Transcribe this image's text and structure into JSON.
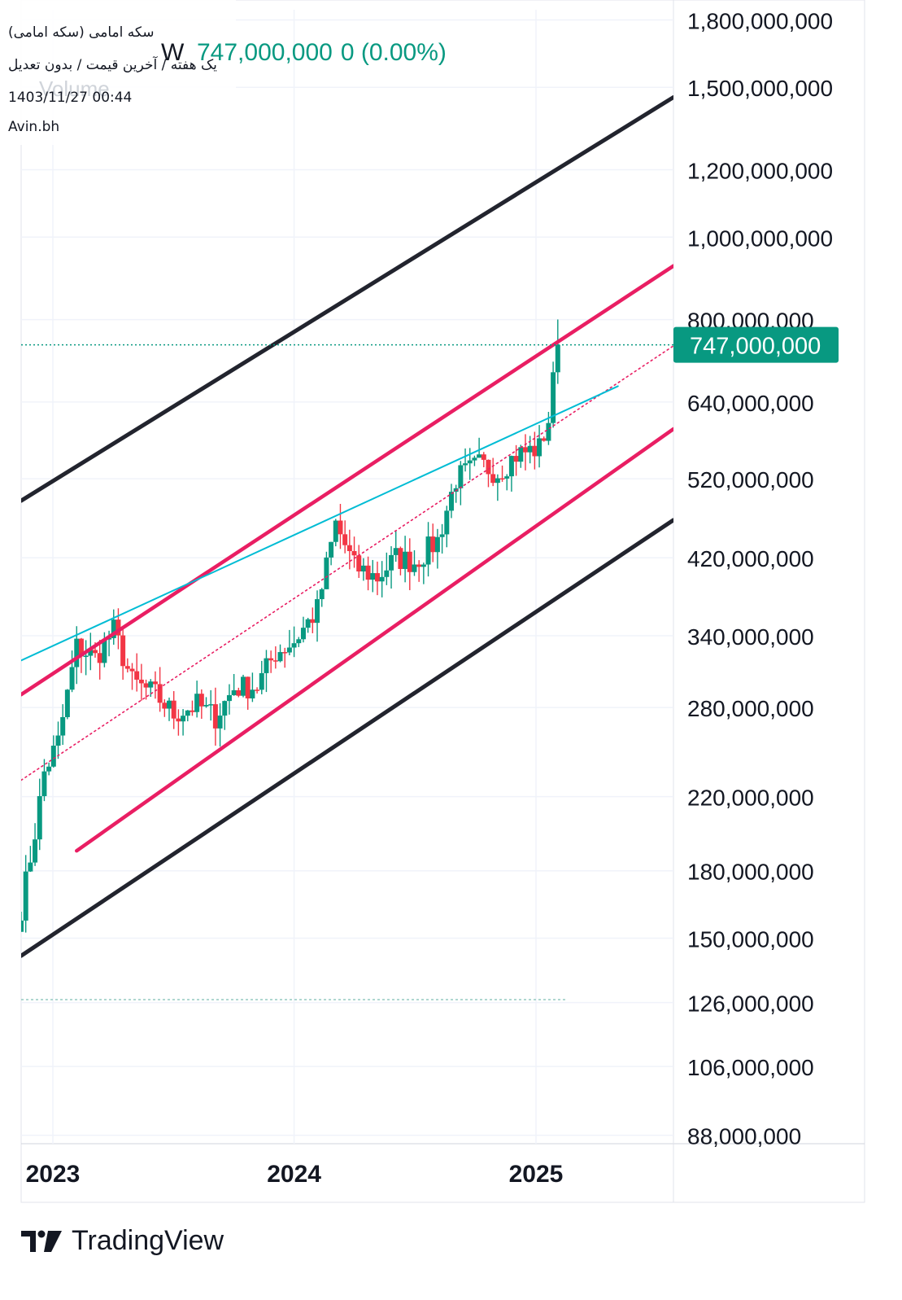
{
  "header": {
    "title": "سکه امامی (سکه امامی)",
    "settings": "یک هفته / آخرین قیمت / بدون تعدیل",
    "datetime": "1403/11/27 00:44",
    "source": "Avin.bh",
    "ghost_volume": "Volume",
    "ghost_letter": "W",
    "last_price": "747,000,000",
    "change": "0 (0.00%)"
  },
  "footer": {
    "brand": "TradingView"
  },
  "colors": {
    "up": "#089981",
    "down": "#f23645",
    "outer_channel": "#22242e",
    "inner_channel": "#e91e63",
    "trendline": "#00bcd4",
    "grid": "#f0f3fa",
    "badge": "#089981"
  },
  "chart_data": {
    "type": "candlestick",
    "timeframe": "weekly",
    "y_scale": "log",
    "ylim": [
      86000000,
      1850000000
    ],
    "xlim": [
      "2022-11-14",
      "2025-07-28"
    ],
    "y_ticks": [
      {
        "value": 1800000000,
        "label": "1,800,000,000"
      },
      {
        "value": 1500000000,
        "label": "1,500,000,000"
      },
      {
        "value": 1200000000,
        "label": "1,200,000,000"
      },
      {
        "value": 1000000000,
        "label": "1,000,000,000"
      },
      {
        "value": 800000000,
        "label": "800,000,000"
      },
      {
        "value": 640000000,
        "label": "640,000,000"
      },
      {
        "value": 520000000,
        "label": "520,000,000"
      },
      {
        "value": 420000000,
        "label": "420,000,000"
      },
      {
        "value": 340000000,
        "label": "340,000,000"
      },
      {
        "value": 280000000,
        "label": "280,000,000"
      },
      {
        "value": 220000000,
        "label": "220,000,000"
      },
      {
        "value": 180000000,
        "label": "180,000,000"
      },
      {
        "value": 150000000,
        "label": "150,000,000"
      },
      {
        "value": 126000000,
        "label": "126,000,000"
      },
      {
        "value": 106000000,
        "label": "106,000,000"
      },
      {
        "value": 88000000,
        "label": "88,000,000"
      }
    ],
    "x_ticks": [
      {
        "date": "2023-01-01",
        "label": "2023"
      },
      {
        "date": "2024-01-01",
        "label": "2024"
      },
      {
        "date": "2025-01-01",
        "label": "2025"
      }
    ],
    "current_price": {
      "value": 747000000,
      "label": "747,000,000"
    },
    "lowest_level": 127000000,
    "anchors": [
      [
        "2022-11-14",
        163000000
      ],
      [
        "2022-12-05",
        200000000
      ],
      [
        "2022-12-19",
        235000000
      ],
      [
        "2023-01-09",
        255000000
      ],
      [
        "2023-02-06",
        330000000
      ],
      [
        "2023-03-06",
        320000000
      ],
      [
        "2023-04-03",
        345000000
      ],
      [
        "2023-05-01",
        300000000
      ],
      [
        "2023-06-05",
        290000000
      ],
      [
        "2023-07-03",
        275000000
      ],
      [
        "2023-08-07",
        282000000
      ],
      [
        "2023-09-04",
        273000000
      ],
      [
        "2023-10-02",
        295000000
      ],
      [
        "2023-11-06",
        297000000
      ],
      [
        "2023-12-04",
        325000000
      ],
      [
        "2024-01-01",
        335000000
      ],
      [
        "2024-02-05",
        365000000
      ],
      [
        "2024-03-04",
        460000000
      ],
      [
        "2024-04-01",
        410000000
      ],
      [
        "2024-05-06",
        398000000
      ],
      [
        "2024-06-03",
        420000000
      ],
      [
        "2024-07-01",
        415000000
      ],
      [
        "2024-08-05",
        440000000
      ],
      [
        "2024-09-02",
        520000000
      ],
      [
        "2024-10-07",
        540000000
      ],
      [
        "2024-11-04",
        530000000
      ],
      [
        "2024-12-02",
        555000000
      ],
      [
        "2025-01-06",
        565000000
      ],
      [
        "2025-01-20",
        610000000
      ],
      [
        "2025-02-03",
        747000000
      ]
    ],
    "overlays": [
      {
        "kind": "outer-channel-upper",
        "from": [
          "2022-11-14",
          490000000
        ],
        "to": [
          "2025-07-28",
          1460000000
        ]
      },
      {
        "kind": "outer-channel-lower",
        "from": [
          "2022-11-14",
          143000000
        ],
        "to": [
          "2025-07-28",
          465000000
        ]
      },
      {
        "kind": "inner-channel-upper",
        "from": [
          "2022-11-14",
          290000000
        ],
        "to": [
          "2025-07-28",
          925000000
        ]
      },
      {
        "kind": "inner-channel-lower",
        "from": [
          "2023-02-06",
          190000000
        ],
        "to": [
          "2025-07-28",
          595000000
        ]
      },
      {
        "kind": "median-dotted",
        "from": [
          "2022-11-14",
          230000000
        ],
        "to": [
          "2025-07-28",
          745000000
        ]
      },
      {
        "kind": "trendline",
        "from": [
          "2022-11-14",
          318000000
        ],
        "to": [
          "2025-05-05",
          668000000
        ]
      }
    ]
  }
}
